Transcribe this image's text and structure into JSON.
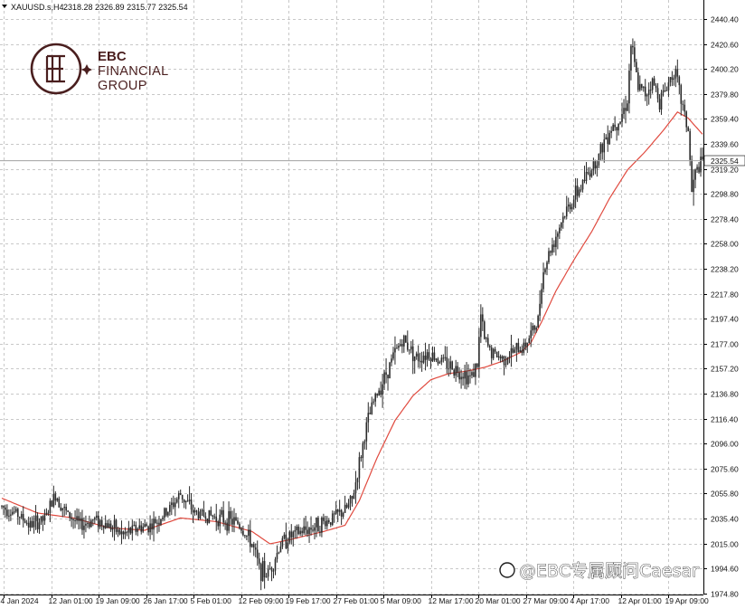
{
  "header": {
    "symbol": "XAUUSD.s,H4",
    "ohlc": "2318.28 2326.89 2315.77 2325.54"
  },
  "logo": {
    "line1": "EBC",
    "line2": "FINANCIAL",
    "line3": "GROUP"
  },
  "watermark": "@EBC专属顾问Caesar",
  "colors": {
    "candle": "#2b2b2b",
    "moving_average": "#e04a3f",
    "grid": "#c8c8c8",
    "logo": "#4a1f1f",
    "current_price_line": "#a0a0a0"
  },
  "chart_data": {
    "type": "candlestick",
    "symbol": "XAUUSD",
    "timeframe": "H4",
    "grid": true,
    "indicator": "moving average (red line)",
    "ylim": [
      1974.8,
      2450.0
    ],
    "y_ticks": [
      "2440.40",
      "2420.60",
      "2400.20",
      "2379.80",
      "2359.40",
      "2339.60",
      "2319.20",
      "2298.80",
      "2278.40",
      "2258.00",
      "2238.20",
      "2217.80",
      "2197.40",
      "2177.00",
      "2157.20",
      "2136.80",
      "2116.40",
      "2096.00",
      "2075.60",
      "2055.80",
      "2035.40",
      "2015.00",
      "1994.60",
      "1974.80"
    ],
    "x_ticks": [
      "4 Jan 2024",
      "12 Jan 01:00",
      "19 Jan 09:00",
      "26 Jan 17:00",
      "5 Feb 01:00",
      "12 Feb 09:00",
      "19 Feb 17:00",
      "27 Feb 01:00",
      "5 Mar 09:00",
      "12 Mar 17:00",
      "20 Mar 01:00",
      "27 Mar 09:00",
      "4 Apr 17:00",
      "12 Apr 01:00",
      "19 Apr 09:00"
    ],
    "current_price": "2325.54",
    "price_path": [
      [
        0,
        2045
      ],
      [
        8,
        2040
      ],
      [
        16,
        2030
      ],
      [
        24,
        2035
      ],
      [
        30,
        2055
      ],
      [
        36,
        2040
      ],
      [
        44,
        2030
      ],
      [
        52,
        2035
      ],
      [
        60,
        2030
      ],
      [
        68,
        2022
      ],
      [
        76,
        2028
      ],
      [
        84,
        2030
      ],
      [
        92,
        2040
      ],
      [
        100,
        2055
      ],
      [
        108,
        2040
      ],
      [
        116,
        2038
      ],
      [
        124,
        2035
      ],
      [
        132,
        2032
      ],
      [
        140,
        2015
      ],
      [
        144,
        1995
      ],
      [
        148,
        1990
      ],
      [
        152,
        2000
      ],
      [
        156,
        2015
      ],
      [
        160,
        2020
      ],
      [
        168,
        2025
      ],
      [
        176,
        2030
      ],
      [
        184,
        2035
      ],
      [
        192,
        2042
      ],
      [
        196,
        2050
      ],
      [
        200,
        2080
      ],
      [
        204,
        2110
      ],
      [
        208,
        2130
      ],
      [
        214,
        2150
      ],
      [
        220,
        2170
      ],
      [
        224,
        2180
      ],
      [
        228,
        2175
      ],
      [
        232,
        2165
      ],
      [
        238,
        2170
      ],
      [
        244,
        2165
      ],
      [
        250,
        2160
      ],
      [
        256,
        2155
      ],
      [
        262,
        2150
      ],
      [
        266,
        2160
      ],
      [
        268,
        2200
      ],
      [
        270,
        2180
      ],
      [
        274,
        2170
      ],
      [
        280,
        2165
      ],
      [
        286,
        2170
      ],
      [
        292,
        2175
      ],
      [
        296,
        2185
      ],
      [
        300,
        2195
      ],
      [
        302,
        2230
      ],
      [
        306,
        2250
      ],
      [
        310,
        2265
      ],
      [
        314,
        2280
      ],
      [
        318,
        2290
      ],
      [
        322,
        2300
      ],
      [
        326,
        2310
      ],
      [
        330,
        2320
      ],
      [
        334,
        2330
      ],
      [
        338,
        2345
      ],
      [
        342,
        2355
      ],
      [
        346,
        2360
      ],
      [
        350,
        2375
      ],
      [
        352,
        2420
      ],
      [
        356,
        2385
      ],
      [
        360,
        2380
      ],
      [
        364,
        2390
      ],
      [
        368,
        2375
      ],
      [
        372,
        2385
      ],
      [
        376,
        2400
      ],
      [
        380,
        2375
      ],
      [
        384,
        2350
      ],
      [
        386,
        2300
      ],
      [
        388,
        2315
      ],
      [
        392,
        2325
      ]
    ],
    "ma_path": [
      [
        0,
        2052
      ],
      [
        20,
        2040
      ],
      [
        40,
        2036
      ],
      [
        60,
        2028
      ],
      [
        80,
        2026
      ],
      [
        100,
        2036
      ],
      [
        120,
        2033
      ],
      [
        140,
        2025
      ],
      [
        150,
        2015
      ],
      [
        160,
        2018
      ],
      [
        180,
        2025
      ],
      [
        192,
        2030
      ],
      [
        200,
        2050
      ],
      [
        210,
        2085
      ],
      [
        220,
        2115
      ],
      [
        230,
        2135
      ],
      [
        240,
        2148
      ],
      [
        250,
        2153
      ],
      [
        260,
        2155
      ],
      [
        270,
        2158
      ],
      [
        280,
        2163
      ],
      [
        290,
        2170
      ],
      [
        296,
        2178
      ],
      [
        302,
        2195
      ],
      [
        310,
        2220
      ],
      [
        320,
        2245
      ],
      [
        330,
        2268
      ],
      [
        340,
        2295
      ],
      [
        350,
        2318
      ],
      [
        360,
        2333
      ],
      [
        370,
        2350
      ],
      [
        378,
        2365
      ],
      [
        384,
        2360
      ],
      [
        392,
        2347
      ]
    ]
  }
}
